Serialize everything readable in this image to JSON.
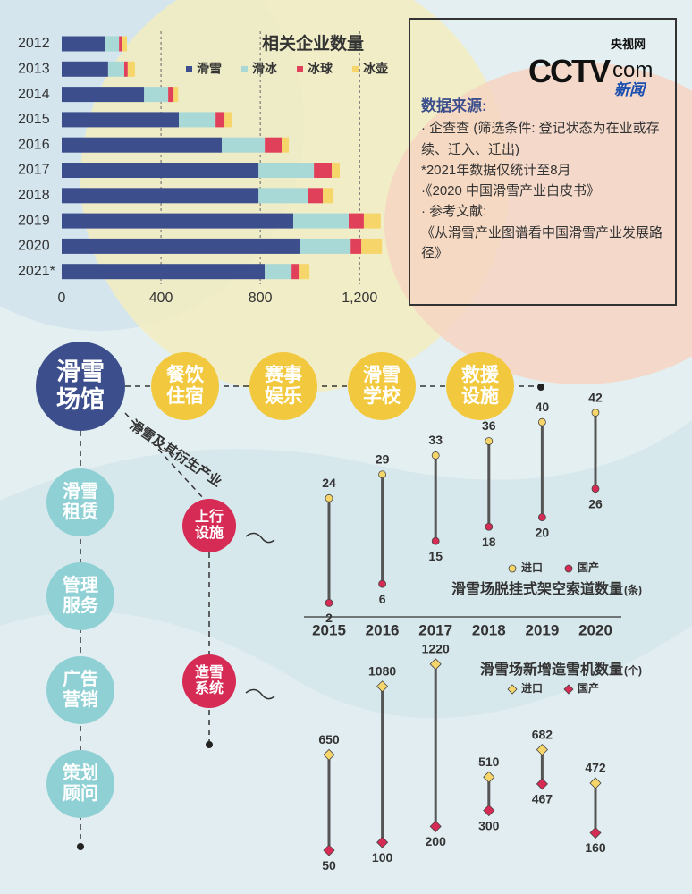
{
  "chart_data": [
    {
      "type": "stacked-bar-horizontal",
      "title": "相关企业数量",
      "categories": [
        "2012",
        "2013",
        "2014",
        "2015",
        "2016",
        "2017",
        "2018",
        "2019",
        "2020",
        "2021*"
      ],
      "series": [
        {
          "name": "滑雪",
          "color": "#3c4f8c",
          "values": [
            173,
            187,
            332,
            472,
            645,
            793,
            793,
            933,
            959,
            818
          ]
        },
        {
          "name": "滑冰",
          "color": "#a9d9d6",
          "values": [
            58,
            65,
            97,
            148,
            173,
            223,
            198,
            223,
            205,
            108
          ]
        },
        {
          "name": "冰球",
          "color": "#e0405a",
          "values": [
            14,
            14,
            22,
            36,
            68,
            72,
            61,
            61,
            43,
            29
          ]
        },
        {
          "name": "冰壶",
          "color": "#f6d66a",
          "values": [
            18,
            29,
            18,
            29,
            29,
            32,
            43,
            68,
            83,
            43
          ]
        }
      ],
      "xlim": [
        0,
        1300
      ],
      "xticks": [
        0,
        400,
        800,
        {
          "value": 1200,
          "label": "1,200"
        }
      ],
      "grid": true
    },
    {
      "type": "dumbbell",
      "title": "滑雪场脱挂式架空索道数量",
      "unit": "(条)",
      "categories": [
        "2015",
        "2016",
        "2017",
        "2018",
        "2019",
        "2020"
      ],
      "series": [
        {
          "name": "进口",
          "color": "#f6d66a",
          "values": [
            24,
            29,
            33,
            36,
            40,
            42
          ]
        },
        {
          "name": "国产",
          "color": "#d62b55",
          "values": [
            2,
            6,
            15,
            18,
            20,
            26
          ]
        }
      ]
    },
    {
      "type": "dumbbell-diamond",
      "title": "滑雪场新增造雪机数量",
      "unit": "(个)",
      "series": [
        {
          "name": "进口",
          "color": "#f6d66a",
          "values": [
            650,
            1080,
            1220,
            510,
            682,
            472
          ]
        },
        {
          "name": "国产",
          "color": "#d62b55",
          "values": [
            50,
            100,
            200,
            300,
            467,
            160
          ]
        }
      ]
    }
  ],
  "source": {
    "logo": {
      "brand": "CCTV",
      "domain": "com",
      "site": "央视网",
      "app": "新闻"
    },
    "heading": "数据来源:",
    "items": [
      "· 企查查 (筛选条件: 登记状态为在业或存续、迁入、迁出)",
      "*2021年数据仅统计至8月",
      "·《2020 中国滑雪产业白皮书》",
      "· 参考文献:",
      "《从滑雪产业图谱看中国滑雪产业发展路径》"
    ]
  },
  "diagram": {
    "center": "滑雪场馆",
    "branch_label": "滑雪及其衍生产业",
    "services": [
      "餐饮住宿",
      "赛事娱乐",
      "滑雪学校",
      "救援设施"
    ],
    "operations": [
      "滑雪租赁",
      "管理服务",
      "广告营销",
      "策划顾问"
    ],
    "equipment": [
      "上行设施",
      "造雪系统"
    ]
  }
}
